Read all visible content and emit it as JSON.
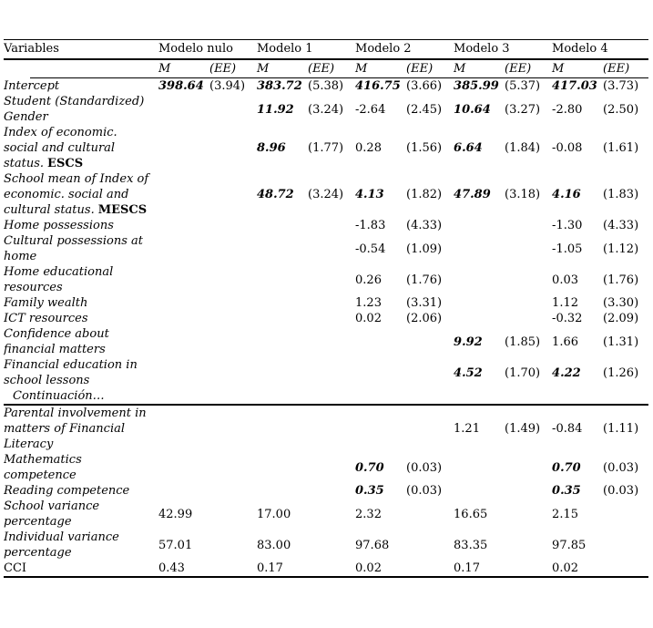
{
  "colors": {
    "background": "#ffffff",
    "text": "#000000",
    "rule": "#000000"
  },
  "table": {
    "header": {
      "variables_label": "Variables",
      "models": [
        "Modelo nulo",
        "Modelo 1",
        "Modelo 2",
        "Modelo 3",
        "Modelo 4"
      ],
      "m_label": "M",
      "ee_label": "(EE)"
    },
    "rows": [
      {
        "label": "Intercept",
        "cells": [
          {
            "m": "398.64",
            "ee": "(3.94)",
            "sig": true
          },
          {
            "m": "383.72",
            "ee": "(5.38)",
            "sig": true
          },
          {
            "m": "416.75",
            "ee": "(3.66)",
            "sig": true
          },
          {
            "m": "385.99",
            "ee": "(5.37)",
            "sig": true
          },
          {
            "m": "417.03",
            "ee": "(3.73)",
            "sig": true
          }
        ]
      },
      {
        "label": "Student (Standardized)\nGender",
        "cells": [
          {},
          {
            "m": "11.92",
            "ee": "(3.24)",
            "sig": true
          },
          {
            "m": "-2.64",
            "ee": "(2.45)"
          },
          {
            "m": "10.64",
            "ee": "(3.27)",
            "sig": true
          },
          {
            "m": "-2.80",
            "ee": "(2.50)"
          }
        ]
      },
      {
        "label": "Index of economic.\nsocial and cultural\nstatus.",
        "label_suffix": "ESCS",
        "cells": [
          {},
          {
            "m": "8.96",
            "ee": "(1.77)",
            "sig": true
          },
          {
            "m": "0.28",
            "ee": "(1.56)"
          },
          {
            "m": "6.64",
            "ee": "(1.84)",
            "sig": true
          },
          {
            "m": "-0.08",
            "ee": "(1.61)"
          }
        ]
      },
      {
        "label": "School mean of Index of\neconomic. social and\ncultural status.",
        "label_suffix": "MESCS",
        "cells": [
          {},
          {
            "m": "48.72",
            "ee": "(3.24)",
            "sig": true
          },
          {
            "m": "4.13",
            "ee": "(1.82)",
            "sig": true
          },
          {
            "m": "47.89",
            "ee": "(3.18)",
            "sig": true
          },
          {
            "m": "4.16",
            "ee": "(1.83)",
            "sig": true
          }
        ]
      },
      {
        "label": "Home possessions",
        "cells": [
          {},
          {},
          {
            "m": "-1.83",
            "ee": "(4.33)"
          },
          {},
          {
            "m": "-1.30",
            "ee": "(4.33)"
          }
        ]
      },
      {
        "label": "Cultural possessions at\nhome",
        "cells": [
          {},
          {},
          {
            "m": "-0.54",
            "ee": "(1.09)"
          },
          {},
          {
            "m": "-1.05",
            "ee": "(1.12)"
          }
        ]
      },
      {
        "label": "Home educational\nresources",
        "cells": [
          {},
          {},
          {
            "m": "0.26",
            "ee": "(1.76)"
          },
          {},
          {
            "m": "0.03",
            "ee": "(1.76)"
          }
        ]
      },
      {
        "label": "Family wealth",
        "cells": [
          {},
          {},
          {
            "m": "1.23",
            "ee": "(3.31)"
          },
          {},
          {
            "m": "1.12",
            "ee": "(3.30)"
          }
        ]
      },
      {
        "label": "ICT resources",
        "cells": [
          {},
          {},
          {
            "m": "0.02",
            "ee": "(2.06)"
          },
          {},
          {
            "m": "-0.32",
            "ee": "(2.09)"
          }
        ]
      },
      {
        "label": "Confidence about\nfinancial matters",
        "cells": [
          {},
          {},
          {},
          {
            "m": "9.92",
            "ee": "(1.85)",
            "sig": true
          },
          {
            "m": "1.66",
            "ee": "(1.31)"
          }
        ]
      },
      {
        "label": "Financial education in\nschool lessons",
        "cells": [
          {},
          {},
          {},
          {
            "m": "4.52",
            "ee": "(1.70)",
            "sig": true
          },
          {
            "m": "4.22",
            "ee": "(1.26)",
            "sig": true
          }
        ]
      },
      {
        "divider": true,
        "label": "Continuación…"
      },
      {
        "label": "Parental involvement in\nmatters of Financial\nLiteracy",
        "cells": [
          {},
          {},
          {},
          {
            "m": "1.21",
            "ee": "(1.49)"
          },
          {
            "m": "-0.84",
            "ee": "(1.11)"
          }
        ]
      },
      {
        "label": "Mathematics\ncompetence",
        "cells": [
          {},
          {},
          {
            "m": "0.70",
            "ee": "(0.03)",
            "sig": true
          },
          {},
          {
            "m": "0.70",
            "ee": "(0.03)",
            "sig": true
          }
        ]
      },
      {
        "label": "Reading competence",
        "cells": [
          {},
          {},
          {
            "m": "0.35",
            "ee": "(0.03)",
            "sig": true
          },
          {},
          {
            "m": "0.35",
            "ee": "(0.03)",
            "sig": true
          }
        ]
      },
      {
        "label": "School variance\npercentage",
        "cells": [
          {
            "m": "42.99"
          },
          {
            "m": "17.00"
          },
          {
            "m": "2.32"
          },
          {
            "m": "16.65"
          },
          {
            "m": "2.15"
          }
        ]
      },
      {
        "label": "Individual variance\npercentage",
        "cells": [
          {
            "m": "57.01"
          },
          {
            "m": "83.00"
          },
          {
            "m": "97.68"
          },
          {
            "m": "83.35"
          },
          {
            "m": "97.85"
          }
        ]
      },
      {
        "label": "CCI",
        "label_style": "upright",
        "cells": [
          {
            "m": "0.43"
          },
          {
            "m": "0.17"
          },
          {
            "m": "0.02"
          },
          {
            "m": "0.17"
          },
          {
            "m": "0.02"
          }
        ]
      }
    ]
  }
}
